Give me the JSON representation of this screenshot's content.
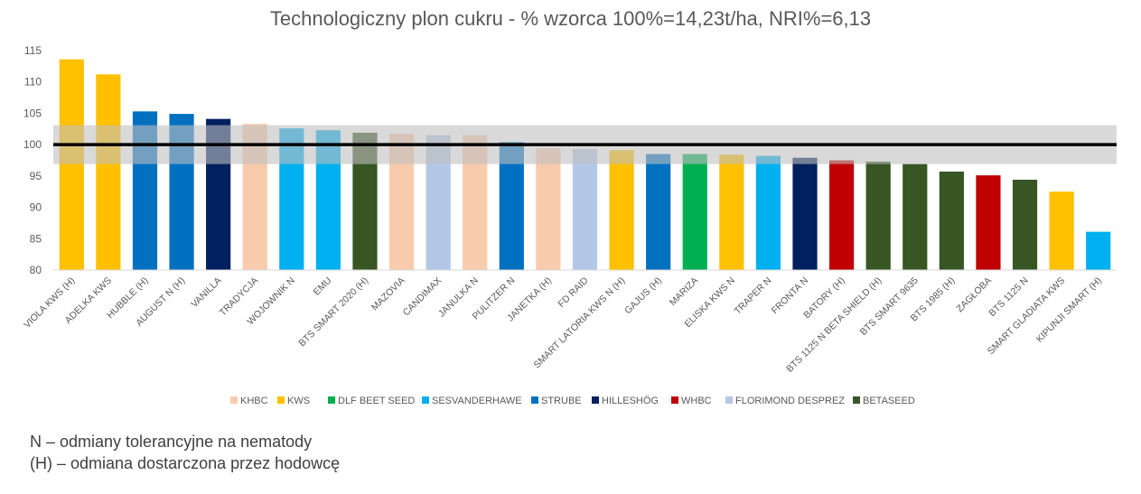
{
  "chart_data": {
    "type": "bar",
    "title": "Technologiczny plon cukru - % wzorca 100%=14,23t/ha, NRI%=6,13",
    "ylim": [
      80,
      115
    ],
    "yticks": [
      80,
      85,
      90,
      95,
      100,
      105,
      110,
      115
    ],
    "reference_line": 100,
    "band": [
      96.9,
      103.1
    ],
    "categories": [
      "VIOLA KWS (H)",
      "ADELKA KWS",
      "HUBBLE (H)",
      "AUGUST N (H)",
      "VANILLA",
      "TRADYCJA",
      "WOJOWNIK N",
      "EMU",
      "BTS SMART 2020 (H)",
      "MAZOVIA",
      "CANDIMAX",
      "JANULKA N",
      "PULITZER N",
      "JANETKA (H)",
      "FD RAID",
      "SMART LATORIA KWS N (H)",
      "GAJUS (H)",
      "MARIZA",
      "ELISKA KWS N",
      "TRAPER N",
      "FRONTA N",
      "BATORY (H)",
      "BTS 1125 N BETA SHIELD (H)",
      "BTS SMART 9635",
      "BTS 1985 (H)",
      "ZAGŁOBA",
      "BTS 1125 N",
      "SMART GLADIATA KWS",
      "KIPUNJI SMART (H)"
    ],
    "values": [
      113.6,
      111.2,
      105.3,
      104.9,
      104.1,
      103.3,
      102.6,
      102.3,
      101.9,
      101.7,
      101.5,
      101.5,
      100.4,
      99.4,
      99.3,
      99.1,
      98.5,
      98.5,
      98.4,
      98.2,
      97.9,
      97.5,
      97.3,
      96.9,
      95.7,
      95.1,
      94.4,
      92.5,
      86.1
    ],
    "breeders": [
      "KWS",
      "KWS",
      "STRUBE",
      "STRUBE",
      "HILLESHÖG",
      "KHBC",
      "SESVANDERHAWE",
      "SESVANDERHAWE",
      "BETASEED",
      "KHBC",
      "FLORIMOND DESPREZ",
      "KHBC",
      "STRUBE",
      "KHBC",
      "FLORIMOND DESPREZ",
      "KWS",
      "STRUBE",
      "DLF BEET SEED",
      "KWS",
      "SESVANDERHAWE",
      "HILLESHÖG",
      "WHBC",
      "BETASEED",
      "BETASEED",
      "BETASEED",
      "WHBC",
      "BETASEED",
      "KWS",
      "SESVANDERHAWE"
    ],
    "legend": [
      {
        "name": "KHBC",
        "color": "#F8CBAD"
      },
      {
        "name": "KWS",
        "color": "#FFC000"
      },
      {
        "name": "DLF BEET SEED",
        "color": "#00B050"
      },
      {
        "name": "SESVANDERHAWE",
        "color": "#00B0F0"
      },
      {
        "name": "STRUBE",
        "color": "#0070C0"
      },
      {
        "name": "HILLESHÖG",
        "color": "#002060"
      },
      {
        "name": "WHBC",
        "color": "#C00000"
      },
      {
        "name": "FLORIMOND DESPREZ",
        "color": "#B4C7E7"
      },
      {
        "name": "BETASEED",
        "color": "#375623"
      }
    ],
    "legend_position": "bottom",
    "grid": false
  },
  "notes": [
    "N – odmiany tolerancyjne na nematody",
    "(H) – odmiana dostarczona przez hodowcę"
  ]
}
